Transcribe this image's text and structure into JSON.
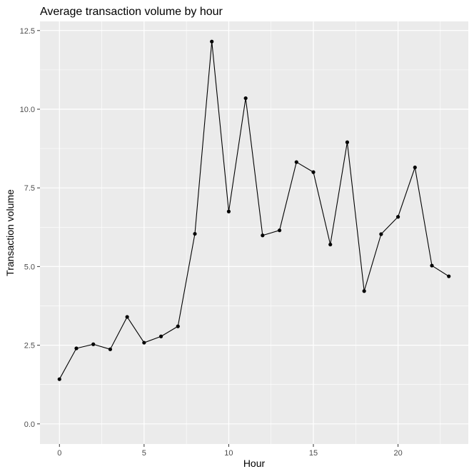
{
  "chart_data": {
    "type": "line",
    "title": "Average transaction volume by hour",
    "xlabel": "Hour",
    "ylabel": "Transaction volume",
    "x": [
      0,
      1,
      2,
      3,
      4,
      5,
      6,
      7,
      8,
      9,
      10,
      11,
      12,
      13,
      14,
      15,
      16,
      17,
      18,
      19,
      20,
      21,
      22,
      23
    ],
    "series": [
      {
        "values": [
          1.42,
          2.4,
          2.53,
          2.37,
          3.4,
          2.58,
          2.78,
          3.1,
          6.04,
          12.15,
          6.75,
          10.35,
          5.99,
          6.15,
          8.32,
          8.0,
          5.7,
          8.95,
          4.22,
          6.03,
          6.58,
          8.15,
          5.03,
          4.69
        ]
      }
    ],
    "xlim": [
      -1.15,
      24.15
    ],
    "ylim": [
      -0.64,
      12.79
    ],
    "x_ticks": [
      0,
      5,
      10,
      15,
      20
    ],
    "x_tick_labels": [
      "0",
      "5",
      "10",
      "15",
      "20"
    ],
    "y_ticks": [
      0,
      2.5,
      5,
      7.5,
      10,
      12.5
    ],
    "y_tick_labels": [
      "0.0",
      "2.5",
      "5.0",
      "7.5",
      "10.0",
      "12.5"
    ],
    "grid": true,
    "colors": {
      "panel_background": "#ebebeb",
      "grid_major": "#ffffff",
      "line": "#000000",
      "point": "#000000",
      "tick_label": "#4d4d4d"
    }
  }
}
